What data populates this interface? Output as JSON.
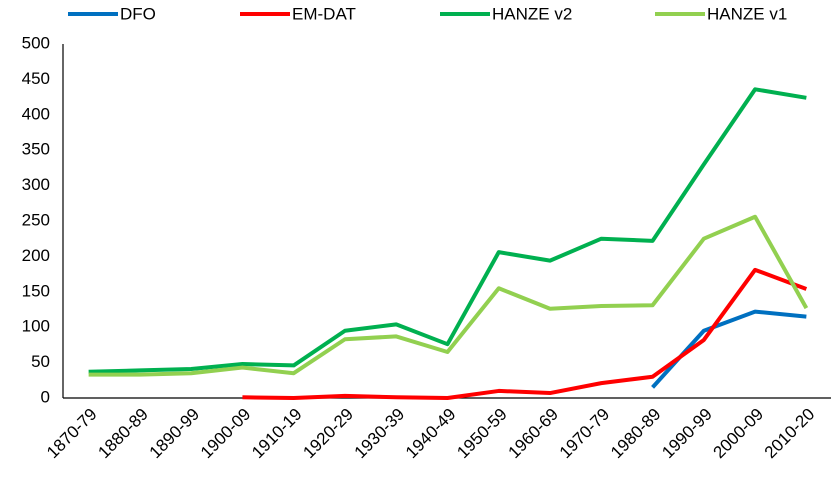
{
  "chart_data": {
    "type": "line",
    "categories": [
      "1870-79",
      "1880-89",
      "1890-99",
      "1900-09",
      "1910-19",
      "1920-29",
      "1930-39",
      "1940-49",
      "1950-59",
      "1960-69",
      "1970-79",
      "1980-89",
      "1990-99",
      "2000-09",
      "2010-20"
    ],
    "series": [
      {
        "name": "DFO",
        "color": "#0070c0",
        "values": [
          null,
          null,
          null,
          null,
          null,
          null,
          null,
          null,
          null,
          null,
          null,
          15,
          95,
          122,
          115
        ]
      },
      {
        "name": "EM-DAT",
        "color": "#ff0000",
        "values": [
          null,
          null,
          null,
          1,
          0,
          3,
          1,
          0,
          10,
          7,
          21,
          30,
          82,
          181,
          154
        ]
      },
      {
        "name": "HANZE v2",
        "color": "#00b050",
        "values": [
          37,
          39,
          41,
          48,
          46,
          95,
          104,
          76,
          206,
          194,
          225,
          222,
          330,
          436,
          424
        ]
      },
      {
        "name": "HANZE v1",
        "color": "#92d050",
        "values": [
          33,
          33,
          35,
          43,
          35,
          83,
          87,
          65,
          155,
          126,
          130,
          131,
          225,
          256,
          127
        ]
      }
    ],
    "ylim": [
      0,
      500
    ],
    "yticks": [
      0,
      50,
      100,
      150,
      200,
      250,
      300,
      350,
      400,
      450,
      500
    ]
  }
}
